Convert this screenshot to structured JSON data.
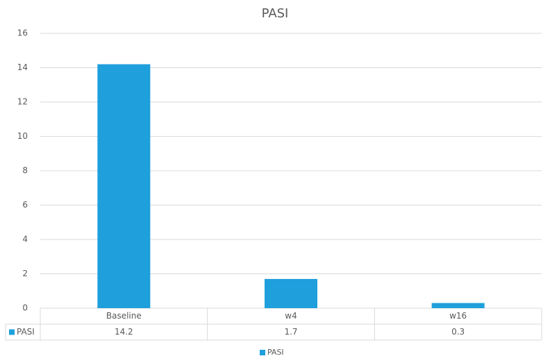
{
  "chart_data": {
    "type": "bar",
    "title": "PASI",
    "categories": [
      "Baseline",
      "w4",
      "w16"
    ],
    "series": [
      {
        "name": "PASI",
        "color": "#1f9fdc",
        "values": [
          14.2,
          1.7,
          0.3
        ]
      }
    ],
    "ylim": [
      0,
      16
    ],
    "yticks": [
      0,
      2,
      4,
      6,
      8,
      10,
      12,
      14,
      16
    ],
    "grid": true,
    "data_table": true,
    "legend": "bottom"
  }
}
